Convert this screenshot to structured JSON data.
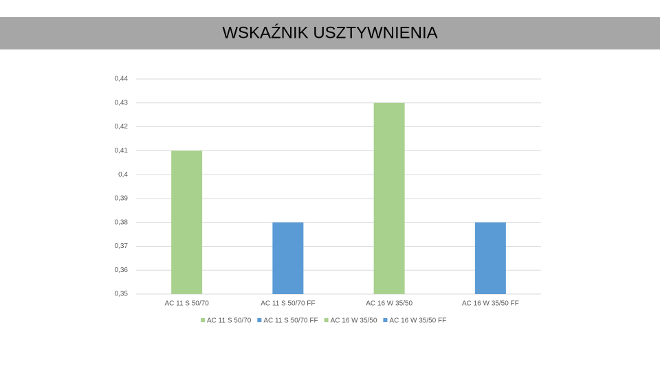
{
  "chart_data": {
    "type": "bar",
    "title": "WSKAŹNIK USZTYWNIENIA",
    "categories": [
      "AC 11 S 50/70",
      "AC 11 S 50/70 FF",
      "AC 16 W 35/50",
      "AC 16 W 35/50 FF"
    ],
    "values": [
      0.41,
      0.38,
      0.43,
      0.38
    ],
    "colors": [
      "#a9d18e",
      "#5b9bd5",
      "#a9d18e",
      "#5b9bd5"
    ],
    "ylim": [
      0.35,
      0.44
    ],
    "yticks": [
      {
        "value": 0.35,
        "label": "0,35"
      },
      {
        "value": 0.36,
        "label": "0,36"
      },
      {
        "value": 0.37,
        "label": "0,37"
      },
      {
        "value": 0.38,
        "label": "0,38"
      },
      {
        "value": 0.39,
        "label": "0,39"
      },
      {
        "value": 0.4,
        "label": "0,4"
      },
      {
        "value": 0.41,
        "label": "0,41"
      },
      {
        "value": 0.42,
        "label": "0,42"
      },
      {
        "value": 0.43,
        "label": "0,43"
      },
      {
        "value": 0.44,
        "label": "0,44"
      }
    ],
    "grid": true,
    "legend": "bottom"
  }
}
